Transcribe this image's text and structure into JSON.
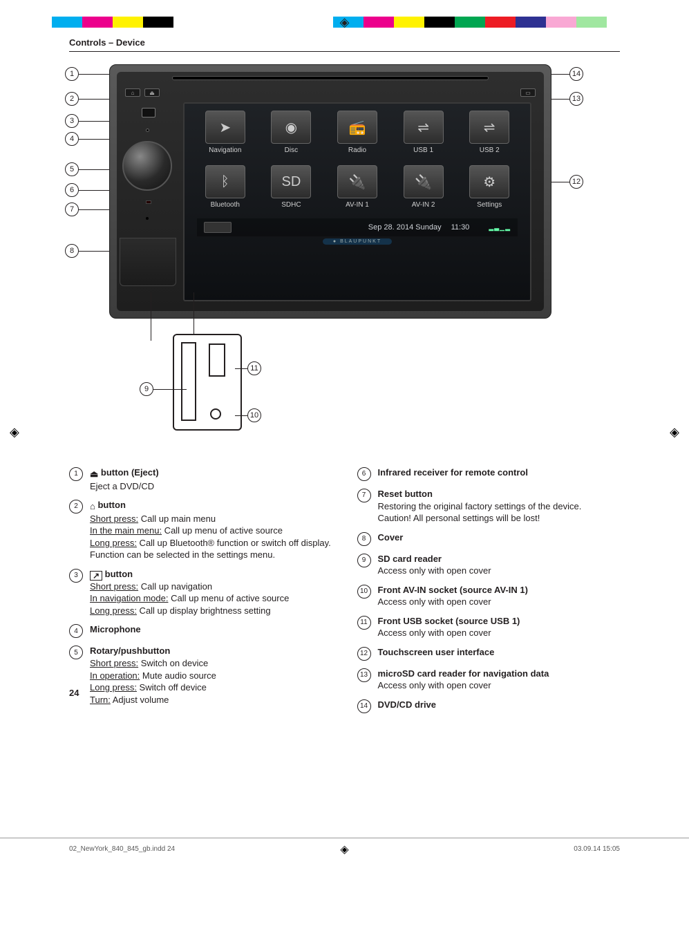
{
  "colorBars": {
    "left": [
      "#00aeef",
      "#ec008c",
      "#fff200",
      "#000000"
    ],
    "right": [
      "#00aeef",
      "#ec008c",
      "#fff200",
      "#000000",
      "#00a651",
      "#ed1c24",
      "#2e3192",
      "#f9a8d4",
      "#a0e7a0",
      "#ffffff"
    ]
  },
  "header": {
    "section": "Controls – Device"
  },
  "device": {
    "apps": [
      {
        "label": "Navigation",
        "glyph": "➤"
      },
      {
        "label": "Disc",
        "glyph": "◉"
      },
      {
        "label": "Radio",
        "glyph": "📻"
      },
      {
        "label": "USB 1",
        "glyph": "⇌"
      },
      {
        "label": "USB 2",
        "glyph": "⇌"
      },
      {
        "label": "Bluetooth",
        "glyph": "ᛒ"
      },
      {
        "label": "SDHC",
        "glyph": "SD"
      },
      {
        "label": "AV-IN 1",
        "glyph": "🔌"
      },
      {
        "label": "AV-IN 2",
        "glyph": "🔌"
      },
      {
        "label": "Settings",
        "glyph": "⚙"
      }
    ],
    "status": {
      "date": "Sep 28. 2014 Sunday",
      "time": "11:30",
      "eq": "▂▃▁▂"
    },
    "brand": "● BLAUPUNKT"
  },
  "callouts": {
    "leftNums": [
      "1",
      "2",
      "3",
      "4",
      "5",
      "6",
      "7",
      "8"
    ],
    "rightNums": [
      "14",
      "13",
      "12"
    ],
    "lowerNums": [
      "9",
      "11",
      "10"
    ]
  },
  "legend": {
    "left": [
      {
        "n": "1",
        "icon": "eject",
        "title": " button (Eject)",
        "lines": [
          "Eject a DVD/CD"
        ]
      },
      {
        "n": "2",
        "icon": "home",
        "title": " button",
        "lines": [
          "<span class='u'>Short press:</span> Call up main menu",
          "<span class='u'>In the main menu:</span> Call up menu of active source",
          "<span class='u'>Long press:</span> Call up Bluetooth® function or switch off display. Function can be selected in the settings menu."
        ]
      },
      {
        "n": "3",
        "icon": "nav",
        "title": " button",
        "lines": [
          "<span class='u'>Short press:</span> Call up navigation",
          "<span class='u'>In navigation mode:</span> Call up menu of active source",
          "<span class='u'>Long press:</span> Call up display brightness setting"
        ]
      },
      {
        "n": "4",
        "title": "Microphone",
        "lines": []
      },
      {
        "n": "5",
        "title": "Rotary/pushbutton",
        "lines": [
          "<span class='u'>Short press:</span> Switch on device",
          "<span class='u'>In operation:</span> Mute audio source",
          "<span class='u'>Long press:</span> Switch off device",
          "<span class='u'>Turn:</span> Adjust volume"
        ]
      }
    ],
    "right": [
      {
        "n": "6",
        "title": "Infrared receiver for remote control",
        "lines": []
      },
      {
        "n": "7",
        "title": "Reset button",
        "lines": [
          "Restoring the original factory settings of the device.",
          "Caution! All personal settings will be lost!"
        ]
      },
      {
        "n": "8",
        "title": "Cover",
        "lines": []
      },
      {
        "n": "9",
        "title": "SD card reader",
        "lines": [
          "Access only with open cover"
        ]
      },
      {
        "n": "10",
        "title": "Front AV-IN socket (source AV-IN 1)",
        "lines": [
          "Access only with open cover"
        ]
      },
      {
        "n": "11",
        "title": "Front USB socket (source USB 1)",
        "lines": [
          "Access only with open cover"
        ]
      },
      {
        "n": "12",
        "title": "Touchscreen user interface",
        "lines": []
      },
      {
        "n": "13",
        "title": "microSD card reader for navigation data",
        "lines": [
          "Access only with open cover"
        ]
      },
      {
        "n": "14",
        "title": "DVD/CD drive",
        "lines": []
      }
    ]
  },
  "pageNumber": "24",
  "footer": {
    "file": "02_NewYork_840_845_gb.indd   24",
    "timestamp": "03.09.14   15:05"
  }
}
